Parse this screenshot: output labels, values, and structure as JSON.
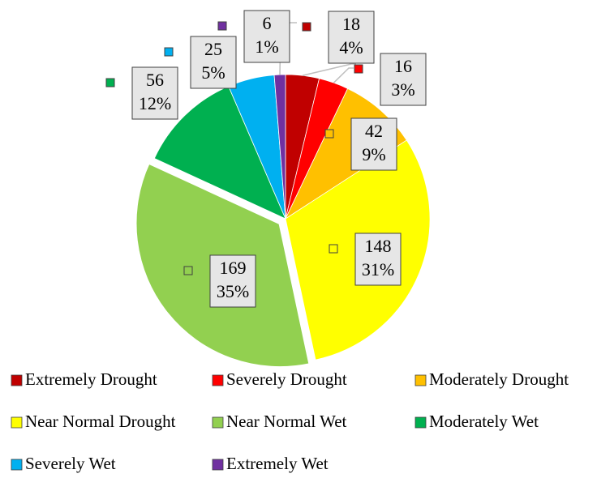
{
  "chart_data": {
    "type": "pie",
    "categories": [
      "Extremely Drought",
      "Severely Drought",
      "Moderately Drought",
      "Near Normal Drought",
      "Near Normal Wet",
      "Moderately Wet",
      "Severely Wet",
      "Extremely Wet"
    ],
    "values": [
      18,
      16,
      42,
      148,
      169,
      56,
      25,
      6
    ],
    "percent_labels": [
      "4%",
      "3%",
      "9%",
      "31%",
      "35%",
      "12%",
      "5%",
      "1%"
    ],
    "colors": [
      "#c00000",
      "#ff0000",
      "#ffc000",
      "#ffff00",
      "#92d050",
      "#00b050",
      "#00b0f0",
      "#7030a0"
    ],
    "exploded": [
      false,
      false,
      false,
      false,
      true,
      false,
      false,
      false
    ],
    "legend": "bottom"
  }
}
